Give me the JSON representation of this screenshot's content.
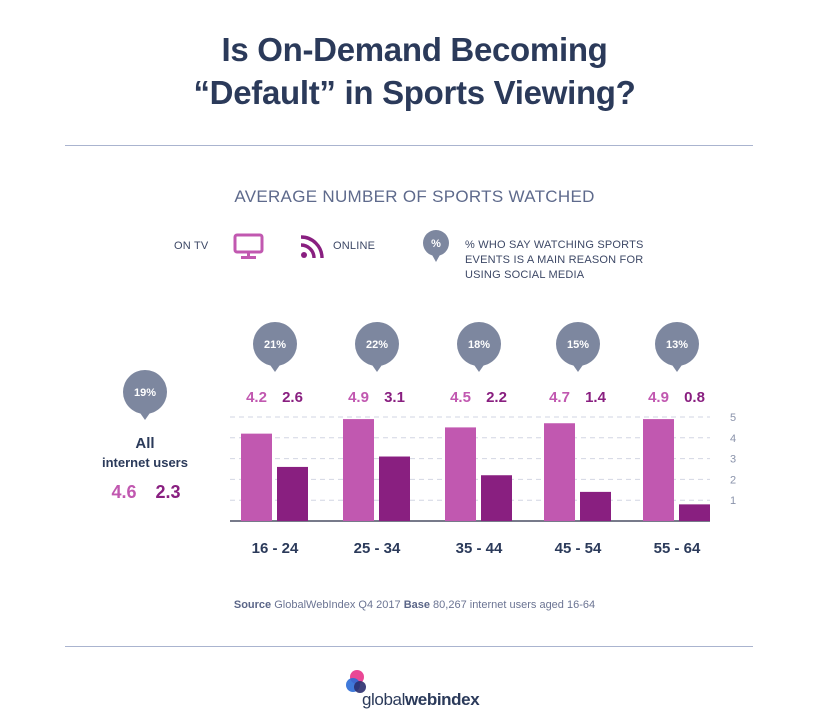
{
  "title_lines": [
    "Is On-Demand Becoming",
    "“Default” in Sports Viewing?"
  ],
  "chart_data": {
    "type": "bar",
    "title": "AVERAGE NUMBER OF SPORTS WATCHED",
    "categories": [
      "16 - 24",
      "25 - 34",
      "35 - 44",
      "45 - 54",
      "55 - 64"
    ],
    "series": [
      {
        "name": "ON TV",
        "values": [
          4.2,
          4.9,
          4.5,
          4.7,
          4.9
        ],
        "color": "#c158b0"
      },
      {
        "name": "ONLINE",
        "values": [
          2.6,
          3.1,
          2.2,
          1.4,
          0.8
        ],
        "color": "#891f80"
      }
    ],
    "social_media_pct": [
      "21%",
      "22%",
      "18%",
      "15%",
      "13%"
    ],
    "y_ticks": [
      "1",
      "2",
      "3",
      "4",
      "5"
    ],
    "ylim": [
      0,
      5
    ],
    "grid": true,
    "all_users": {
      "label_line1": "All",
      "label_line2": "internet users",
      "pct": "19%",
      "tv": "4.6",
      "online": "2.3"
    }
  },
  "legend": {
    "tv_label": "ON TV",
    "online_label": "ONLINE",
    "pct_badge": "%",
    "pct_desc_lines": [
      "% WHO SAY WATCHING SPORTS",
      "EVENTS IS A MAIN REASON FOR",
      "USING SOCIAL MEDIA"
    ],
    "tv_icon": "tv-icon",
    "online_icon": "rss-icon"
  },
  "footer": {
    "source_label": "Source",
    "source_text": "GlobalWebIndex Q4 2017",
    "base_label": "Base",
    "base_text": "80,267 internet users aged 16-64"
  },
  "logo": {
    "part1": "global",
    "part2": "webindex"
  },
  "colors": {
    "navy": "#2b3a5a",
    "bubble": "#7d879f",
    "tv": "#c158b0",
    "online": "#891f80",
    "grid": "#d2d6e3"
  }
}
